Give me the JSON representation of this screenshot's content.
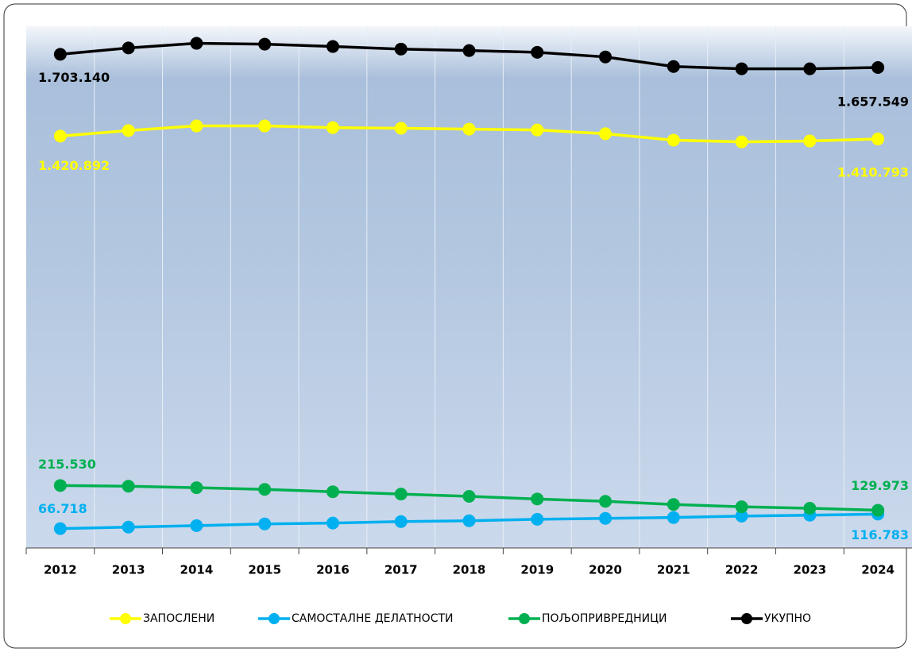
{
  "chart_data": {
    "type": "line",
    "categories": [
      "2012",
      "2013",
      "2014",
      "2015",
      "2016",
      "2017",
      "2018",
      "2019",
      "2020",
      "2021",
      "2022",
      "2023",
      "2024"
    ],
    "ylim": [
      0,
      1800000
    ],
    "series": [
      {
        "name": "ЗАПОСЛЕНИ",
        "color": "#ffff00",
        "values": [
          1420892,
          1440000,
          1456000,
          1456000,
          1450000,
          1448000,
          1445000,
          1442000,
          1429000,
          1407000,
          1401000,
          1404000,
          1410793
        ],
        "value_labels": [
          "1.420.892",
          null,
          null,
          null,
          null,
          null,
          null,
          null,
          null,
          null,
          null,
          null,
          "1.410.793"
        ]
      },
      {
        "name": "САМОСТАЛНЕ ДЕЛАТНОСТИ",
        "color": "#00b0f0",
        "values": [
          66718,
          72000,
          77000,
          83000,
          86000,
          91000,
          94000,
          99000,
          102000,
          105000,
          110000,
          113000,
          116783
        ],
        "value_labels": [
          "66.718",
          null,
          null,
          null,
          null,
          null,
          null,
          null,
          null,
          null,
          null,
          null,
          "116.783"
        ]
      },
      {
        "name": "ПОЉОПРИВРЕДНИЦИ",
        "color": "#00b050",
        "values": [
          215530,
          213000,
          208000,
          202000,
          194000,
          186000,
          178000,
          169000,
          161000,
          150000,
          142000,
          137000,
          129973
        ],
        "value_labels": [
          "215.530",
          null,
          null,
          null,
          null,
          null,
          null,
          null,
          null,
          null,
          null,
          null,
          "129.973"
        ]
      },
      {
        "name": "УКУПНО",
        "color": "#000000",
        "values": [
          1703140,
          1725000,
          1741000,
          1738000,
          1730000,
          1721000,
          1716000,
          1710000,
          1694000,
          1661000,
          1653000,
          1653000,
          1657549
        ],
        "value_labels": [
          "1.703.140",
          null,
          null,
          null,
          null,
          null,
          null,
          null,
          null,
          null,
          null,
          null,
          "1.657.549"
        ]
      }
    ]
  }
}
